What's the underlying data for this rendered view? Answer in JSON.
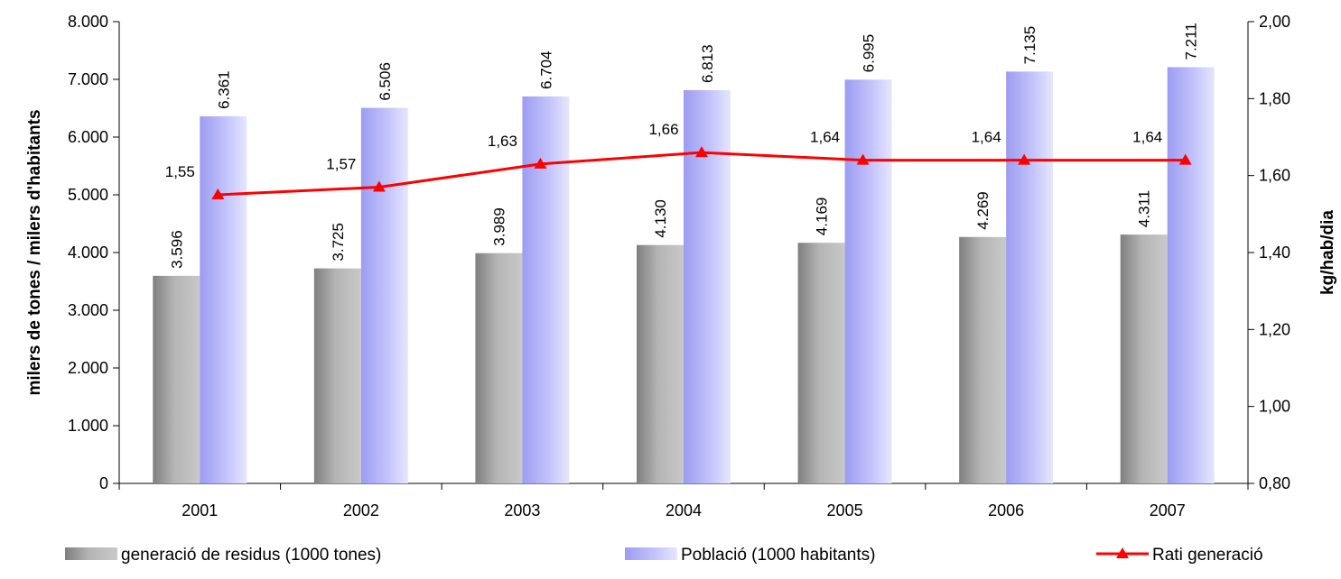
{
  "chart_data": {
    "type": "bar",
    "categories": [
      "2001",
      "2002",
      "2003",
      "2004",
      "2005",
      "2006",
      "2007"
    ],
    "series": [
      {
        "name": "generació de residus (1000 tones)",
        "kind": "bar",
        "axis": "left",
        "color": "#9a9a9a",
        "values": [
          3596,
          3725,
          3989,
          4130,
          4169,
          4269,
          4311
        ],
        "labels": [
          "3.596",
          "3.725",
          "3.989",
          "4.130",
          "4.169",
          "4.269",
          "4.311"
        ]
      },
      {
        "name": "Població (1000 habitants)",
        "kind": "bar",
        "axis": "left",
        "color": "#a8a8f8",
        "values": [
          6361,
          6506,
          6704,
          6813,
          6995,
          7135,
          7211
        ],
        "labels": [
          "6.361",
          "6.506",
          "6.704",
          "6.813",
          "6.995",
          "7.135",
          "7.211"
        ]
      },
      {
        "name": "Rati generació",
        "kind": "line",
        "axis": "right",
        "color": "#ff0000",
        "marker": "triangle",
        "values": [
          1.55,
          1.57,
          1.63,
          1.66,
          1.64,
          1.64,
          1.64
        ],
        "labels": [
          "1,55",
          "1,57",
          "1,63",
          "1,66",
          "1,64",
          "1,64",
          "1,64"
        ]
      }
    ],
    "ylabel_left": "milers de tones / milers d'habitants",
    "ylabel_right": "kg/hab/dia",
    "ylim_left": [
      0,
      8000
    ],
    "ylim_right": [
      0.8,
      2.0
    ],
    "yticks_left": [
      "0",
      "1.000",
      "2.000",
      "3.000",
      "4.000",
      "5.000",
      "6.000",
      "7.000",
      "8.000"
    ],
    "yticks_right": [
      "0,80",
      "1,00",
      "1,20",
      "1,40",
      "1,60",
      "1,80",
      "2,00"
    ],
    "grid": false,
    "legend_position": "bottom"
  }
}
